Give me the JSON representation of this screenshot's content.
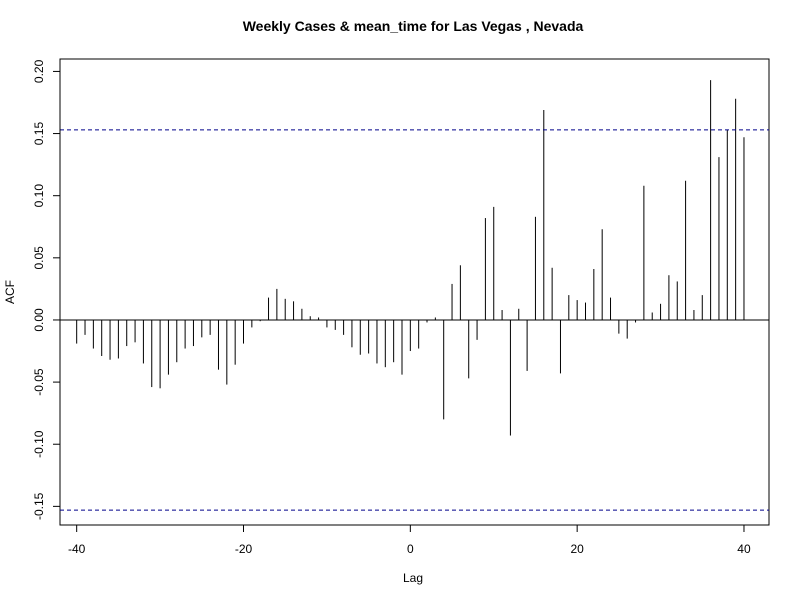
{
  "chart_data": {
    "type": "bar",
    "title": "Weekly Cases & mean_time for Las Vegas , Nevada",
    "xlabel": "Lag",
    "ylabel": "ACF",
    "xlim": [
      -42,
      43
    ],
    "ylim": [
      -0.165,
      0.21
    ],
    "x_ticks": [
      -40,
      -20,
      0,
      20,
      40
    ],
    "x_tick_labels": [
      "-40",
      "-20",
      "0",
      "20",
      "40"
    ],
    "y_ticks": [
      -0.15,
      -0.1,
      -0.05,
      0.0,
      0.05,
      0.1,
      0.15,
      0.2
    ],
    "y_tick_labels": [
      "-0.15",
      "-0.10",
      "-0.05",
      "0.00",
      "0.05",
      "0.10",
      "0.15",
      "0.20"
    ],
    "confidence_bound": 0.153,
    "colors": {
      "bars": "#000000",
      "zero_line": "#000000",
      "confidence_line": "#00008b"
    },
    "lags": [
      -40,
      -39,
      -38,
      -37,
      -36,
      -35,
      -34,
      -33,
      -32,
      -31,
      -30,
      -29,
      -28,
      -27,
      -26,
      -25,
      -24,
      -23,
      -22,
      -21,
      -20,
      -19,
      -18,
      -17,
      -16,
      -15,
      -14,
      -13,
      -12,
      -11,
      -10,
      -9,
      -8,
      -7,
      -6,
      -5,
      -4,
      -3,
      -2,
      -1,
      0,
      1,
      2,
      3,
      4,
      5,
      6,
      7,
      8,
      9,
      10,
      11,
      12,
      13,
      14,
      15,
      16,
      17,
      18,
      19,
      20,
      21,
      22,
      23,
      24,
      25,
      26,
      27,
      28,
      29,
      30,
      31,
      32,
      33,
      34,
      35,
      36,
      37,
      38,
      39,
      40
    ],
    "values": [
      -0.019,
      -0.012,
      -0.023,
      -0.029,
      -0.032,
      -0.031,
      -0.021,
      -0.018,
      -0.035,
      -0.054,
      -0.055,
      -0.044,
      -0.034,
      -0.023,
      -0.021,
      -0.014,
      -0.012,
      -0.04,
      -0.052,
      -0.036,
      -0.019,
      -0.006,
      -0.001,
      0.018,
      0.025,
      0.017,
      0.015,
      0.009,
      0.003,
      0.002,
      -0.006,
      -0.008,
      -0.012,
      -0.022,
      -0.028,
      -0.027,
      -0.035,
      -0.038,
      -0.034,
      -0.044,
      -0.025,
      -0.023,
      -0.002,
      0.002,
      -0.08,
      0.029,
      0.044,
      -0.047,
      -0.016,
      0.082,
      0.091,
      0.008,
      -0.093,
      0.009,
      -0.041,
      0.083,
      0.169,
      0.042,
      -0.043,
      0.02,
      0.016,
      0.014,
      0.041,
      0.073,
      0.018,
      -0.011,
      -0.015,
      -0.002,
      0.108,
      0.006,
      0.013,
      0.036,
      0.031,
      0.112,
      0.008,
      0.02,
      0.193,
      0.131,
      0.153,
      0.178,
      0.147
    ]
  }
}
